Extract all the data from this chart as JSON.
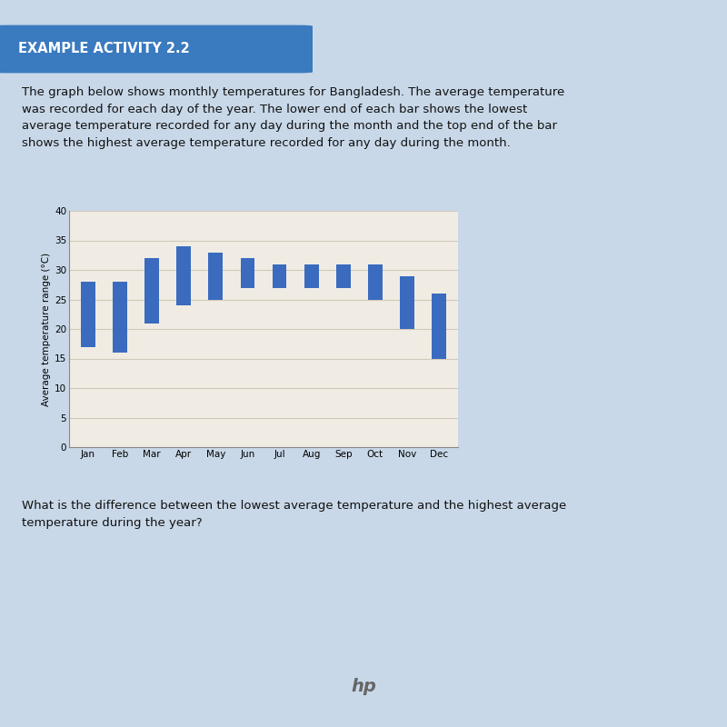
{
  "months": [
    "Jan",
    "Feb",
    "Mar",
    "Apr",
    "May",
    "Jun",
    "Jul",
    "Aug",
    "Sep",
    "Oct",
    "Nov",
    "Dec"
  ],
  "low": [
    17,
    16,
    21,
    24,
    25,
    27,
    27,
    27,
    27,
    25,
    20,
    15
  ],
  "high": [
    28,
    28,
    32,
    34,
    33,
    32,
    31,
    31,
    31,
    31,
    29,
    26
  ],
  "bar_color": "#3a6bbf",
  "page_bg": "#c8d8e8",
  "card_bg": "#b8cfe0",
  "chart_bg": "#f0ece4",
  "header_color": "#3a7abf",
  "header_text": "EXAMPLE ACTIVITY 2.2",
  "description_line1": "The graph below shows monthly temperatures for Bangladesh. The average temperature",
  "description_line2": "was recorded for each day of the year. The lower end of each bar shows the lowest",
  "description_line3": "average temperature recorded for any day during the month and the top end of the bar",
  "description_line4": "shows the highest average temperature recorded for any day during the month.",
  "question_line1": "What is the difference between the lowest average temperature and the highest average",
  "question_line2": "temperature during the year?",
  "ylabel": "Average temperature range (°C)",
  "ylim": [
    0,
    40
  ],
  "yticks": [
    0,
    5,
    10,
    15,
    20,
    25,
    30,
    35,
    40
  ],
  "bezel_color": "#1a1a1a",
  "hp_color": "#666666",
  "grid_color": "#d0c8b8",
  "spine_color": "#888888"
}
